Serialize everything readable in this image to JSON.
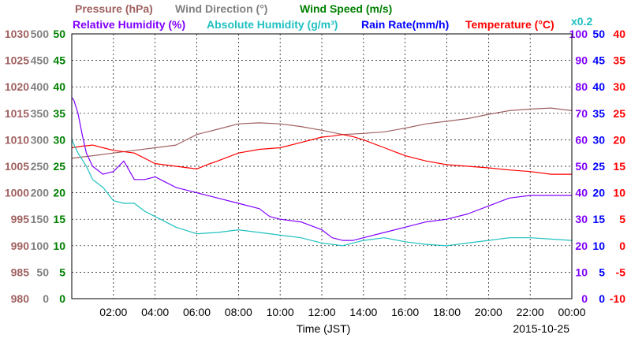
{
  "header": {
    "row1": [
      {
        "text": "Pressure (hPa)",
        "color": "#a06060"
      },
      {
        "text": "Wind Direction (°)",
        "color": "#808080"
      },
      {
        "text": "Wind Speed (m/s)",
        "color": "#008000"
      }
    ],
    "row2": [
      {
        "text": "Relative Humidity (%)",
        "color": "#8000ff"
      },
      {
        "text": "Absolute Humidity (g/m³)",
        "color": "#20c0c0"
      },
      {
        "text": "Rain Rate(mm/h)",
        "color": "#0000ff"
      },
      {
        "text": "Temperature (°C)",
        "color": "#ff0000"
      },
      {
        "text": "x0.2",
        "color": "#20c0c0"
      }
    ]
  },
  "xaxis_label": "Time (JST)",
  "date_label": "2015-10-25",
  "chart_data": {
    "type": "line",
    "x_unit": "hours (JST)",
    "xlim": [
      0,
      24
    ],
    "x_ticks": [
      "02:00",
      "04:00",
      "06:00",
      "08:00",
      "10:00",
      "12:00",
      "14:00",
      "16:00",
      "18:00",
      "20:00",
      "22:00",
      "00:00"
    ],
    "x_tick_values": [
      2,
      4,
      6,
      8,
      10,
      12,
      14,
      16,
      18,
      20,
      22,
      24
    ],
    "grid": true,
    "axes": [
      {
        "name": "Pressure (hPa)",
        "side": "left",
        "color": "#a06060",
        "ticks": [
          "980",
          "985",
          "990",
          "995",
          "1000",
          "1005",
          "1010",
          "1015",
          "1020",
          "1025",
          "1030"
        ],
        "min": 980,
        "max": 1030
      },
      {
        "name": "Wind Direction (°)",
        "side": "left",
        "color": "#808080",
        "ticks": [
          "0",
          "50",
          "100",
          "150",
          "200",
          "250",
          "300",
          "350",
          "400",
          "450",
          "500"
        ],
        "min": 0,
        "max": 500
      },
      {
        "name": "Wind Speed (m/s)",
        "side": "left",
        "color": "#008000",
        "ticks": [
          "0",
          "5",
          "10",
          "15",
          "20",
          "25",
          "30",
          "35",
          "40",
          "45",
          "50"
        ],
        "min": 0,
        "max": 50
      },
      {
        "name": "Relative Humidity (%)",
        "side": "right",
        "color": "#8000ff",
        "ticks": [
          "0",
          "10",
          "20",
          "30",
          "40",
          "50",
          "60",
          "70",
          "80",
          "90",
          "100"
        ],
        "min": 0,
        "max": 100
      },
      {
        "name": "Rain Rate(mm/h)",
        "side": "right",
        "color": "#0000ff",
        "ticks": [
          "0",
          "5",
          "10",
          "15",
          "20",
          "25",
          "30",
          "35",
          "40",
          "45",
          "50"
        ],
        "min": 0,
        "max": 50
      },
      {
        "name": "Temperature (°C)",
        "side": "right",
        "color": "#ff0000",
        "ticks": [
          "-10",
          "-5",
          "0",
          "5",
          "10",
          "15",
          "20",
          "25",
          "30",
          "35",
          "40"
        ],
        "min": -10,
        "max": 40
      }
    ],
    "series": [
      {
        "name": "Pressure (hPa)",
        "color": "#a06060",
        "axis": 0,
        "x": [
          0,
          1,
          2,
          3,
          4,
          5,
          5.5,
          6,
          7,
          8,
          9,
          10,
          11,
          12,
          13,
          14,
          15,
          16,
          17,
          18,
          19,
          20,
          21,
          22,
          23,
          24
        ],
        "y": [
          1006.5,
          1007,
          1007.5,
          1008,
          1008.5,
          1009,
          1010,
          1011,
          1012,
          1013,
          1013.2,
          1013,
          1012.5,
          1011.8,
          1011,
          1011.2,
          1011.5,
          1012.2,
          1013,
          1013.5,
          1014,
          1014.8,
          1015.5,
          1015.8,
          1016,
          1015.5
        ]
      },
      {
        "name": "Temperature (°C)",
        "color": "#ff0000",
        "axis": 5,
        "x": [
          0,
          0.5,
          1,
          1.5,
          2,
          3,
          4,
          5,
          6,
          6.5,
          7,
          8,
          9,
          10,
          11,
          12,
          12.5,
          13,
          13.5,
          14,
          15,
          16,
          17,
          18,
          19,
          20,
          21,
          22,
          23,
          24
        ],
        "y": [
          18.5,
          18.8,
          19,
          18.5,
          18,
          17.5,
          15.5,
          15,
          14.5,
          15.3,
          16,
          17.5,
          18.2,
          18.5,
          19.5,
          20.5,
          20.7,
          21,
          20.6,
          20,
          18.5,
          17,
          16,
          15.3,
          15,
          14.7,
          14.3,
          14,
          13.5,
          13.5
        ]
      },
      {
        "name": "Relative Humidity (%)",
        "color": "#8000ff",
        "axis": 3,
        "x": [
          0,
          0.1,
          0.3,
          0.5,
          0.7,
          1,
          1.5,
          2,
          2.5,
          3,
          3.5,
          4,
          4.5,
          5,
          6,
          7,
          8,
          9,
          9.5,
          10,
          11,
          12,
          12.5,
          13,
          13.5,
          14,
          15,
          16,
          17,
          18,
          19,
          20,
          21,
          22,
          23,
          24
        ],
        "y": [
          76,
          75,
          70,
          62,
          55,
          50,
          47,
          48,
          52,
          45,
          45,
          46,
          44,
          42,
          40,
          38,
          36,
          34,
          31,
          30,
          29,
          26,
          23,
          22,
          22,
          23,
          25,
          27,
          29,
          30,
          32,
          35,
          38,
          39,
          39,
          39
        ]
      },
      {
        "name": "Absolute Humidity (g/m³)",
        "color": "#20c0c0",
        "axis": 3,
        "x": [
          0,
          0.3,
          0.7,
          1,
          1.5,
          2,
          2.5,
          3,
          3.5,
          4,
          5,
          6,
          7,
          8,
          9,
          10,
          11,
          12,
          13,
          14,
          15,
          16,
          17,
          18,
          19,
          20,
          21,
          22,
          23,
          24
        ],
        "y": [
          60,
          55,
          50,
          45,
          42,
          37,
          36,
          36,
          33,
          31,
          27,
          24.5,
          25,
          26,
          25,
          24,
          23,
          21,
          20,
          22,
          23,
          21.5,
          20.5,
          20,
          21,
          22,
          23,
          23,
          22.5,
          22
        ]
      }
    ]
  }
}
